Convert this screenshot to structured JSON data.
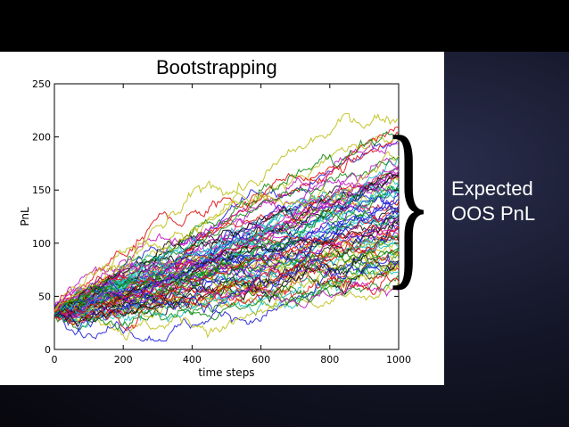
{
  "slide": {
    "title": "Bootstrapping",
    "annotation_line1": "Expected",
    "annotation_line2": "OOS PnL",
    "brace_glyph": "}"
  },
  "chart_data": {
    "type": "line",
    "title": "",
    "xlabel": "time steps",
    "ylabel": "PnL",
    "xlim": [
      0,
      1000
    ],
    "ylim": [
      0,
      250
    ],
    "xticks": [
      0,
      200,
      400,
      600,
      800,
      1000
    ],
    "yticks": [
      0,
      50,
      100,
      150,
      200,
      250
    ],
    "grid": false,
    "legend": "none",
    "start_value": 35,
    "end_range": [
      75,
      220
    ],
    "end_mean": 150,
    "min_value": 8,
    "max_value": 222,
    "num_paths": 80,
    "series_colors": [
      "#1f1fd6",
      "#0f8a0f",
      "#e01010",
      "#17bfbf",
      "#bf17bf",
      "#bfbf17",
      "#111111"
    ]
  }
}
